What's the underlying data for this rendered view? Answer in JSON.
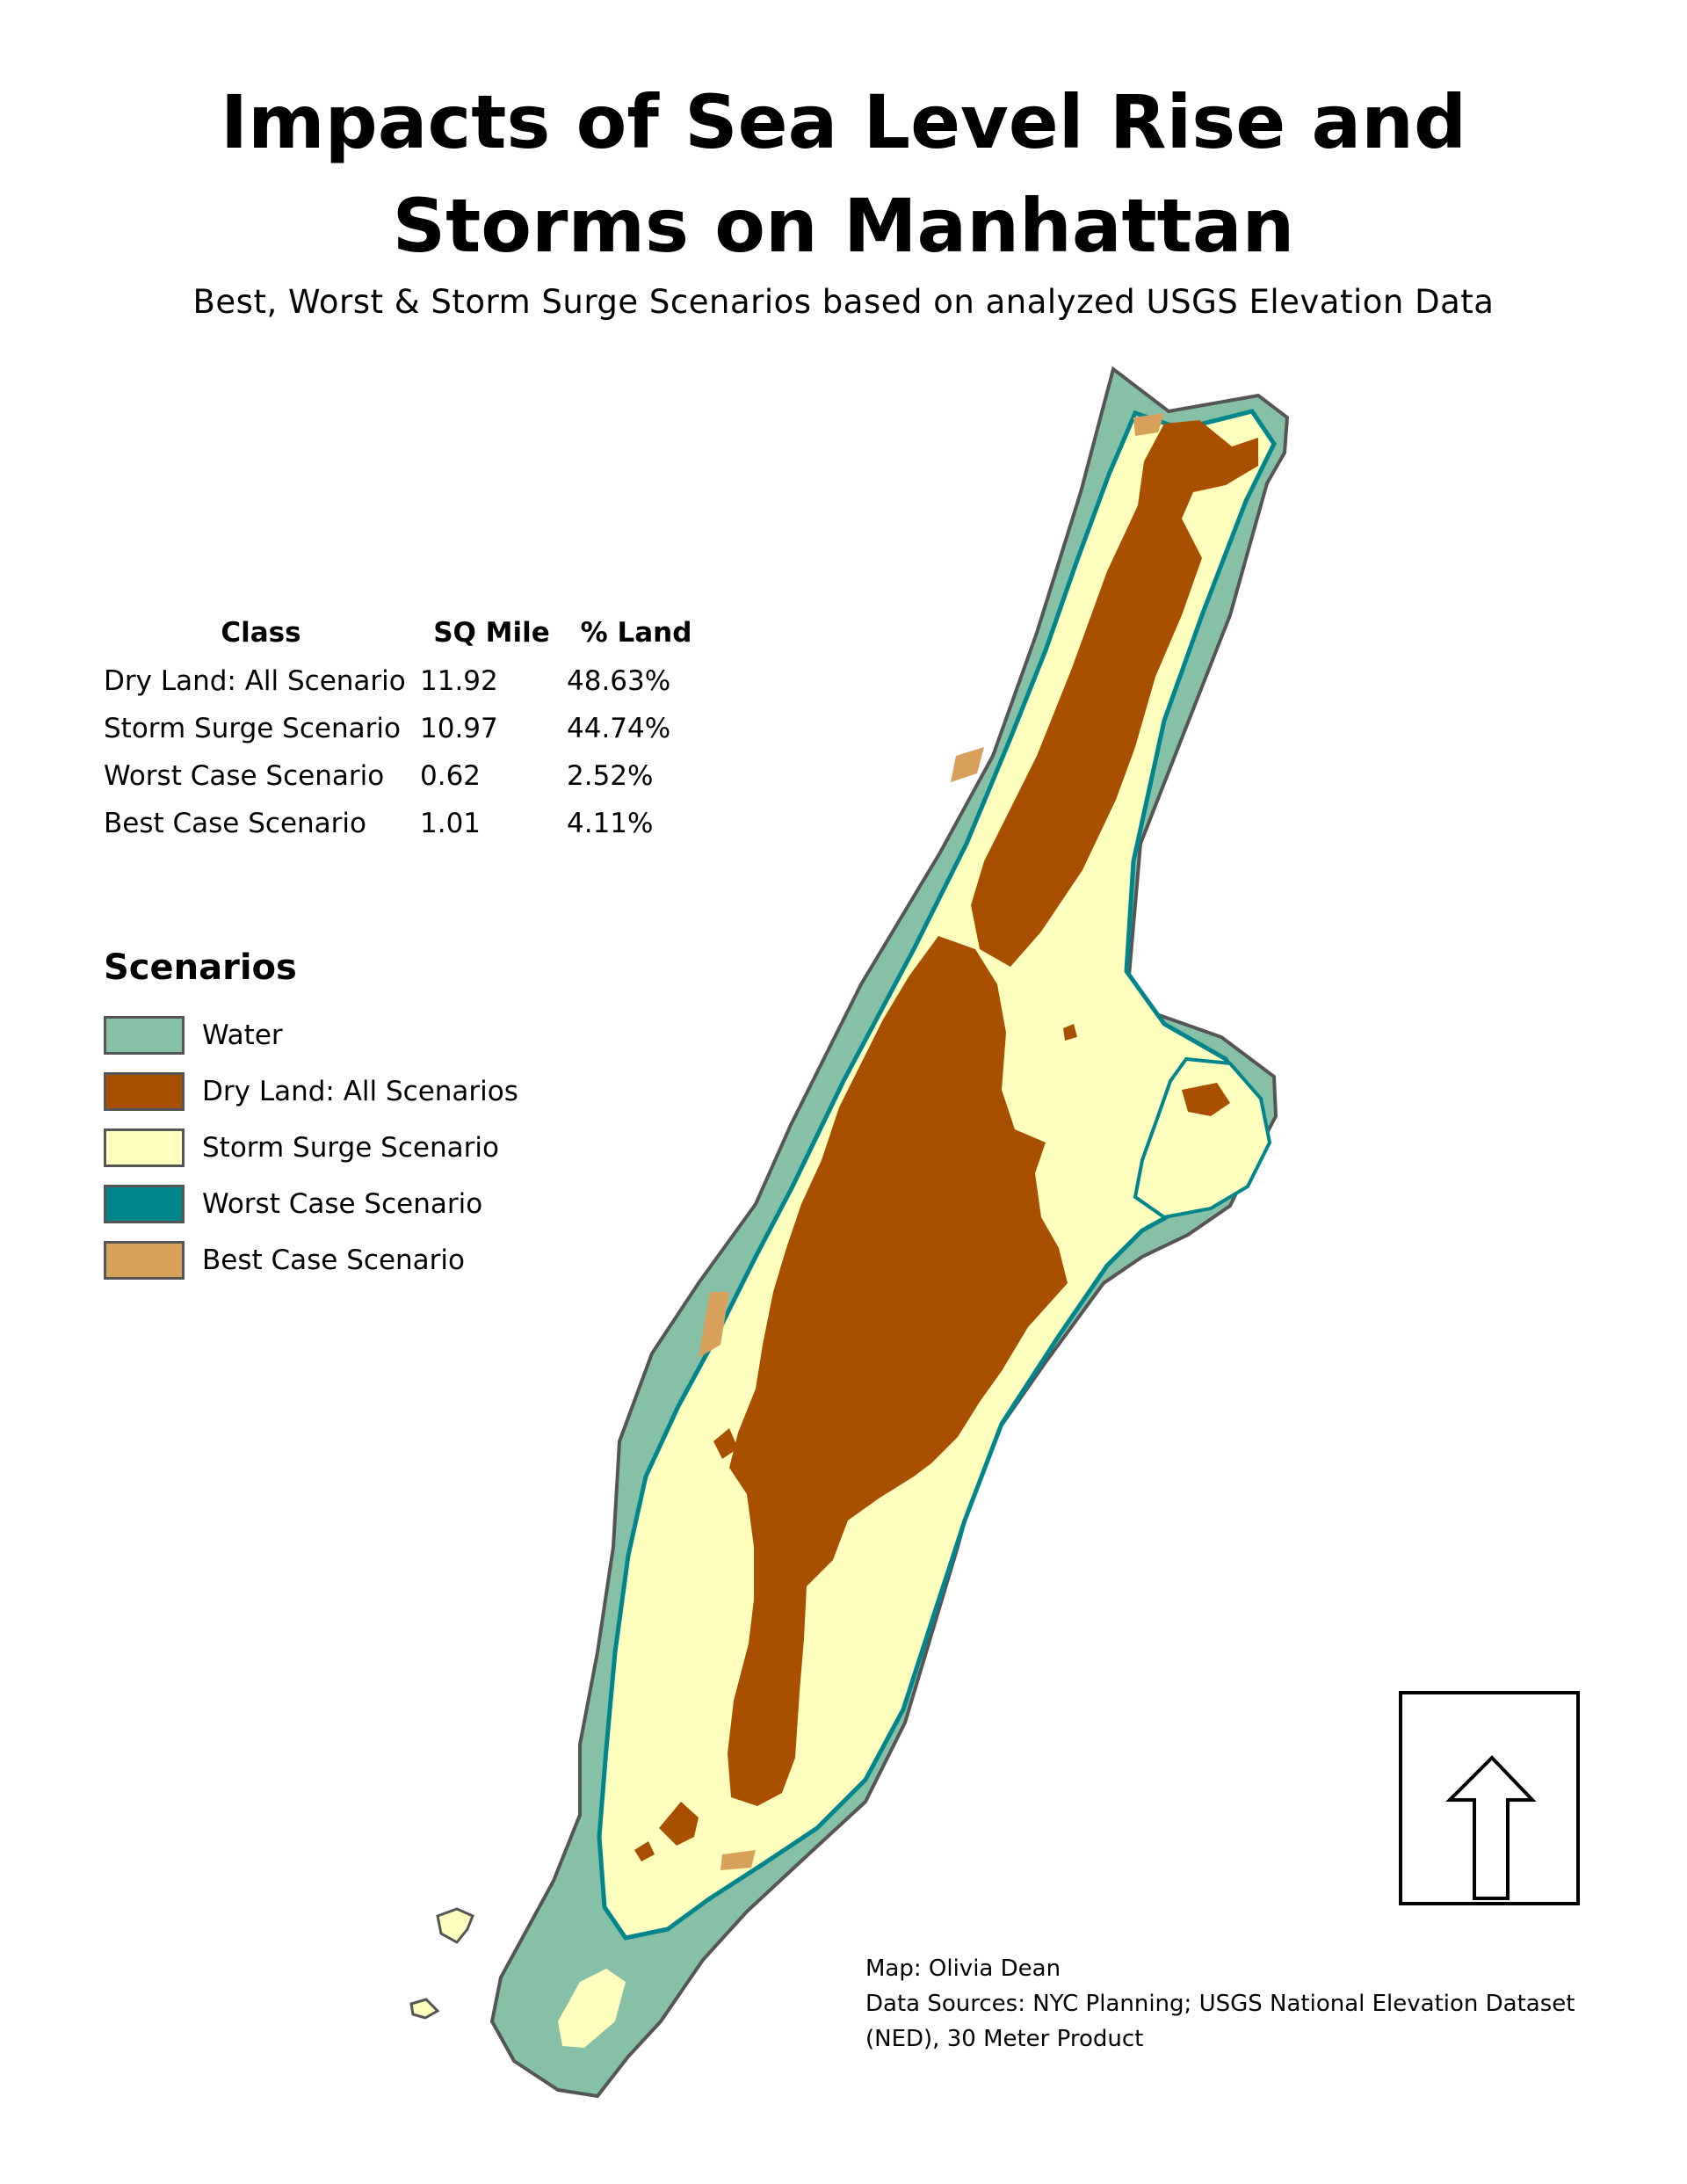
{
  "title_line1": "Impacts of Sea Level Rise and",
  "title_line2": "Storms on Manhattan",
  "subtitle": "Best, Worst & Storm Surge Scenarios based on analyzed USGS Elevation Data",
  "stats": {
    "headers": [
      "Class",
      "SQ Mile",
      "% Land"
    ],
    "rows": [
      {
        "class": "Dry Land: All Scenario",
        "sq_mile": "11.92",
        "pct_land": "48.63%"
      },
      {
        "class": "Storm Surge Scenario",
        "sq_mile": "10.97",
        "pct_land": "44.74%"
      },
      {
        "class": "Worst Case Scenario",
        "sq_mile": "0.62",
        "pct_land": "2.52%"
      },
      {
        "class": "Best Case Scenario",
        "sq_mile": "1.01",
        "pct_land": "4.11%"
      }
    ]
  },
  "legend": {
    "title": "Scenarios",
    "items": [
      {
        "label": "Water",
        "color": "#86c0a7"
      },
      {
        "label": "Dry Land: All Scenarios",
        "color": "#a85000"
      },
      {
        "label": "Storm Surge Scenario",
        "color": "#ffffbe"
      },
      {
        "label": "Worst Case Scenario",
        "color": "#00858c"
      },
      {
        "label": "Best Case Scenario",
        "color": "#d7a05b"
      }
    ]
  },
  "credits": {
    "line1": "Map: Olivia Dean",
    "line2": "Data Sources: NYC Planning; USGS National Elevation Dataset",
    "line3": "(NED), 30 Meter Product"
  },
  "icons": {
    "north_arrow": "north-arrow-icon"
  }
}
